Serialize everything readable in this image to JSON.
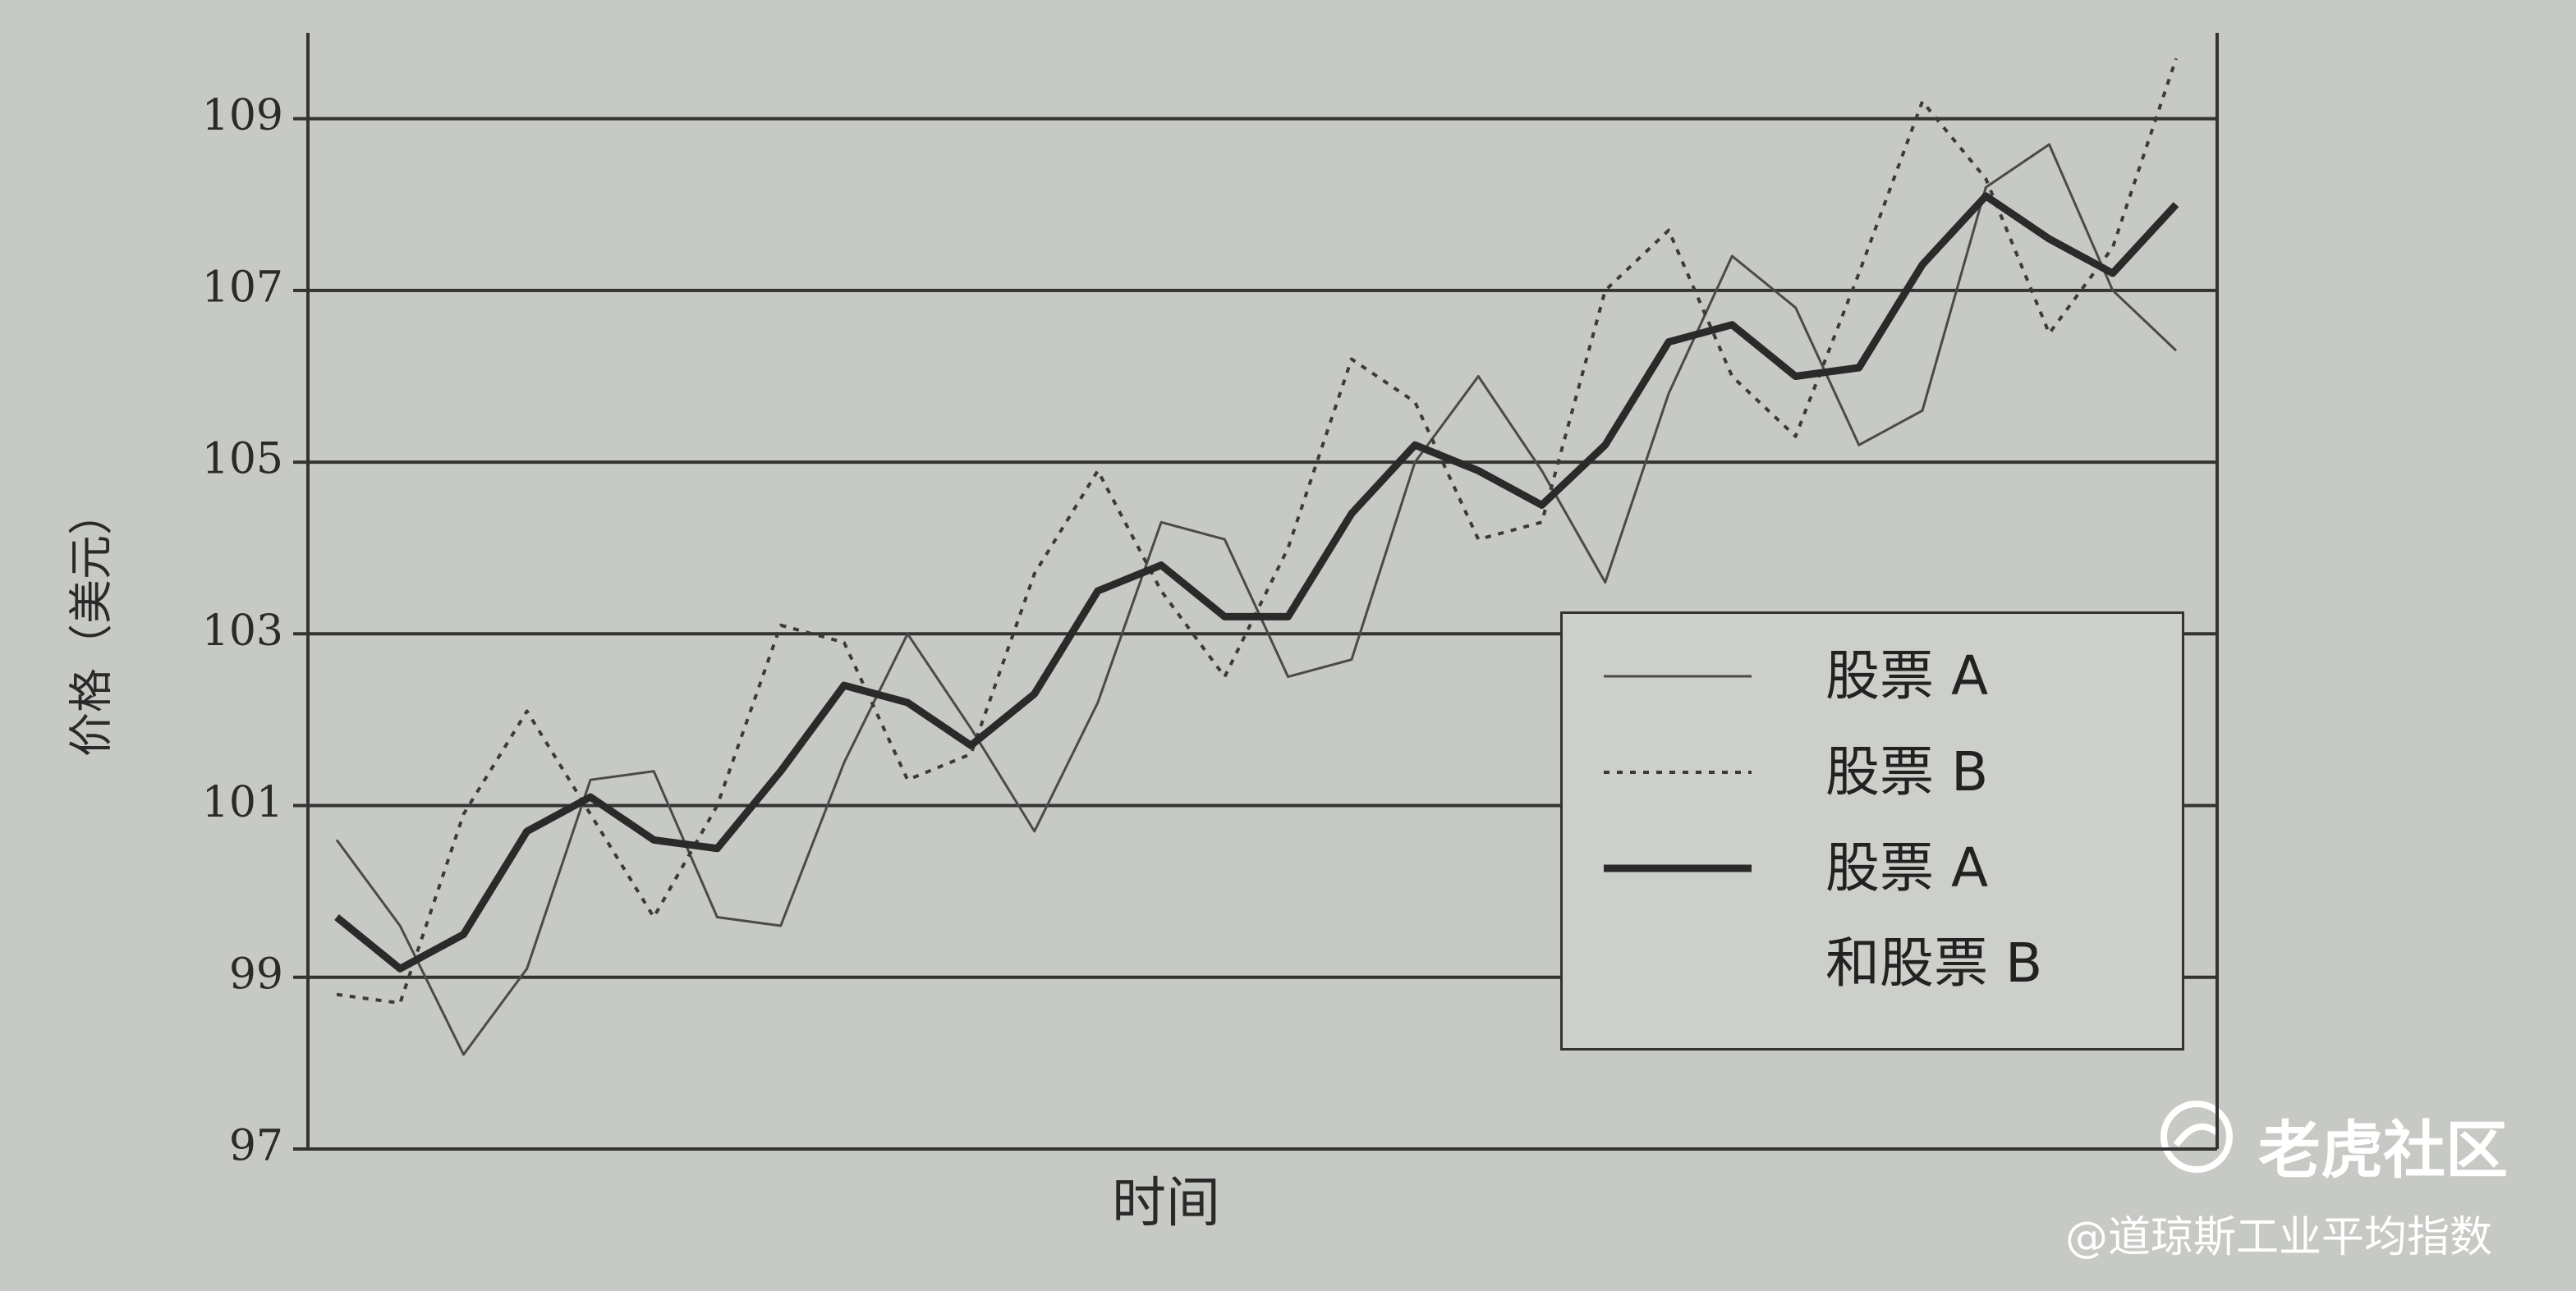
{
  "chart_data": {
    "type": "line",
    "ylabel": "价格（美元）",
    "xlabel": "时间",
    "categories": [
      null,
      null,
      null,
      null,
      null,
      null,
      null,
      null,
      null,
      null,
      null,
      null,
      null,
      null,
      null,
      null,
      null,
      null,
      null,
      null,
      null,
      null,
      null,
      null,
      null,
      null,
      null,
      null,
      null,
      null
    ],
    "series": [
      {
        "name": "股票 A",
        "color": "#4a4a4a",
        "values": [
          100.6,
          99.6,
          98.1,
          99.1,
          101.3,
          101.4,
          99.7,
          99.6,
          101.5,
          103.0,
          101.9,
          100.7,
          102.2,
          104.3,
          104.1,
          102.5,
          102.7,
          105.0,
          106.0,
          104.9,
          103.6,
          105.8,
          107.4,
          106.8,
          105.2,
          105.6,
          108.2,
          108.7,
          107.0,
          106.3
        ]
      },
      {
        "name": "股票 B",
        "color": "#3a3a3a",
        "values": [
          98.8,
          98.7,
          100.9,
          102.1,
          100.9,
          99.7,
          101.0,
          103.1,
          102.9,
          101.3,
          101.6,
          103.7,
          104.9,
          103.5,
          102.5,
          104.0,
          106.2,
          105.7,
          104.1,
          104.3,
          107.0,
          107.7,
          106.0,
          105.3,
          107.2,
          109.2,
          108.3,
          106.5,
          107.5,
          109.7
        ]
      },
      {
        "name": "股票 A\n和股票 B",
        "color": "#2a2a2a",
        "values": [
          99.7,
          99.1,
          99.5,
          100.7,
          101.1,
          100.6,
          100.5,
          101.4,
          102.4,
          102.2,
          101.7,
          102.3,
          103.5,
          103.8,
          103.2,
          103.2,
          104.4,
          105.2,
          104.9,
          104.5,
          105.2,
          106.4,
          106.6,
          106.0,
          106.1,
          107.3,
          108.1,
          107.6,
          107.2,
          108.0
        ]
      }
    ],
    "ylim": [
      97,
      110
    ],
    "yticks": [
      97,
      99,
      101,
      103,
      105,
      107,
      109
    ],
    "grid": true
  },
  "watermark": {
    "brand": "老虎社区",
    "handle": "@道琼斯工业平均指数"
  }
}
